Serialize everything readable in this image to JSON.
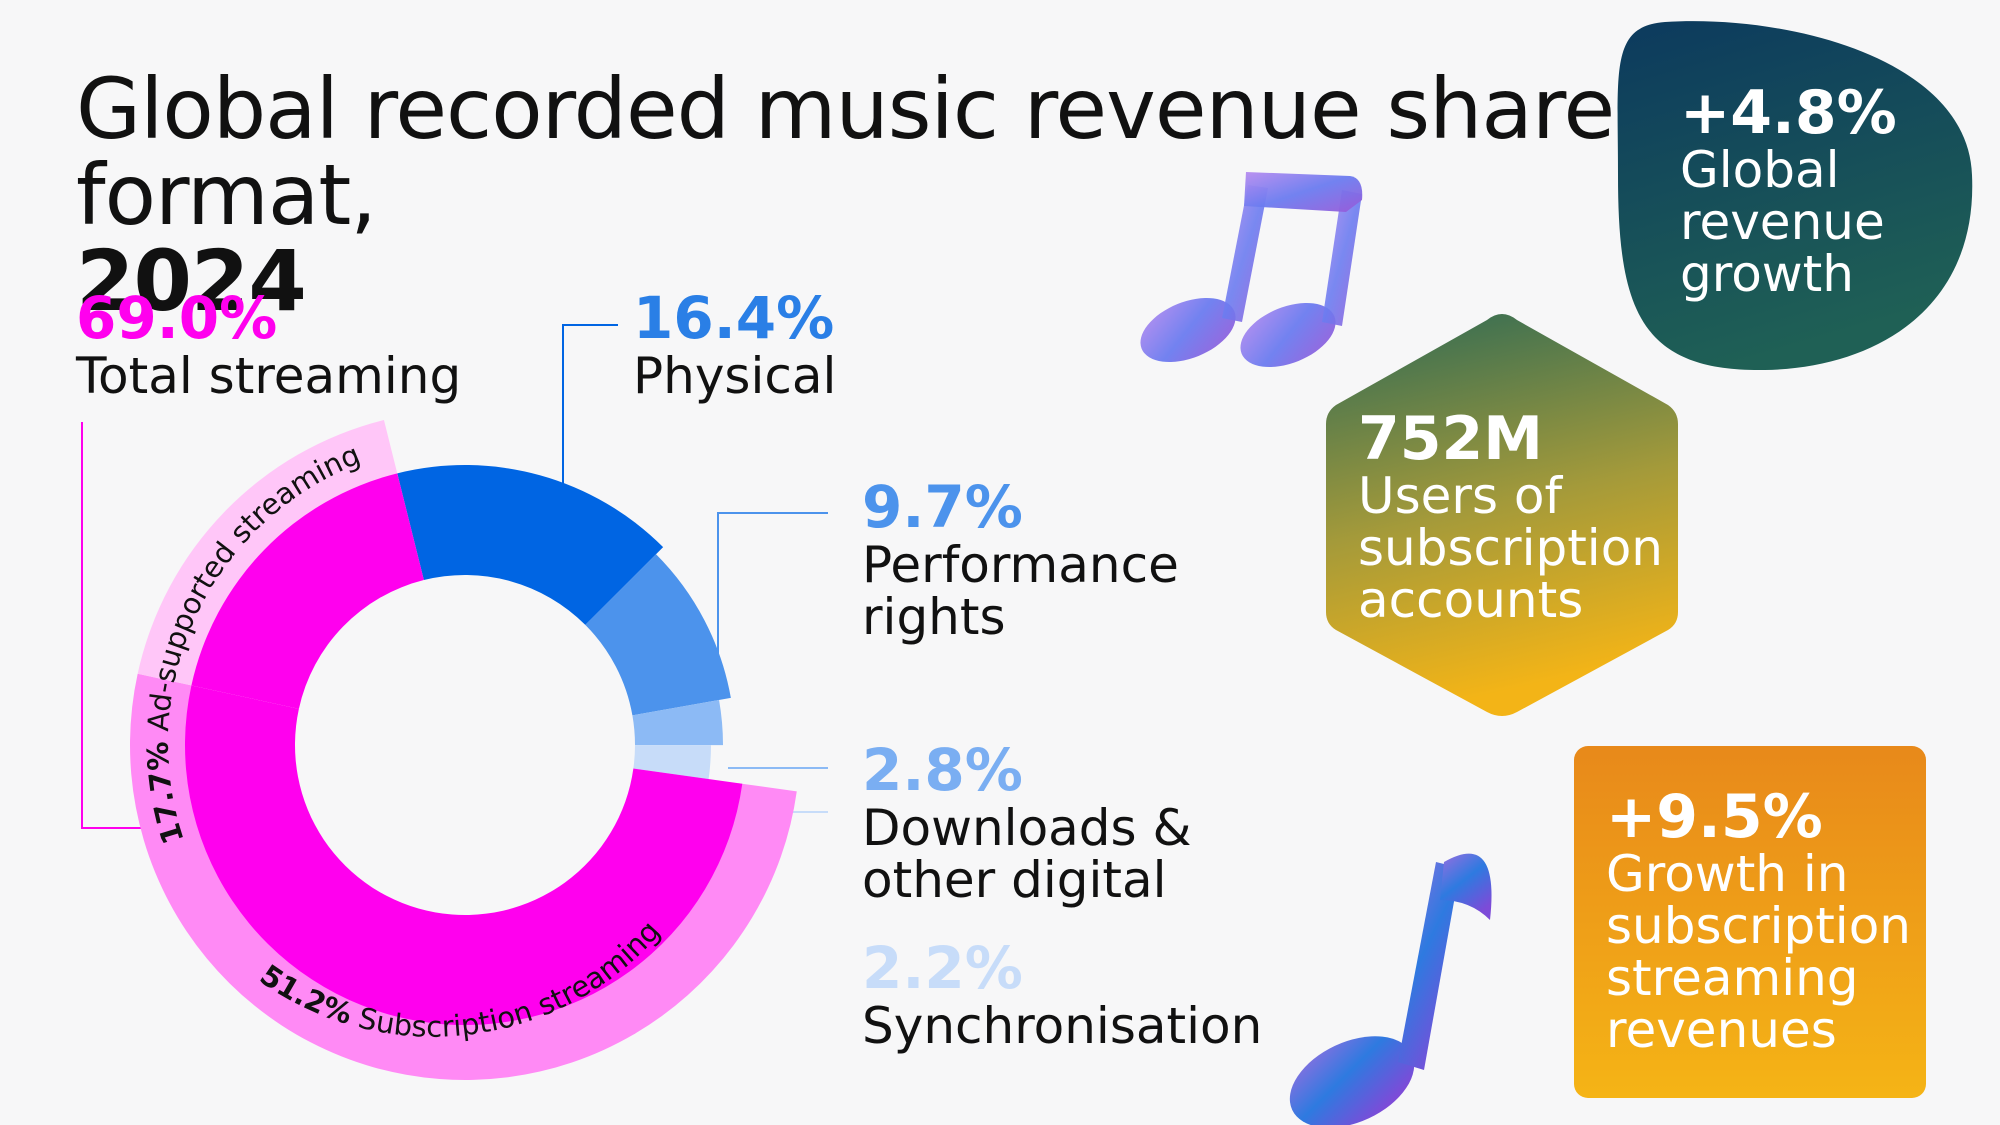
{
  "title": {
    "main": "Global recorded music revenue share by format,",
    "year": "2024"
  },
  "colors": {
    "streaming": "#ff00ee",
    "streaming_light": "#ff8af5",
    "streaming_pale": "#ffc6f8",
    "physical": "#0065e3",
    "performance": "#4c93ec",
    "downloads": "#8cbaf5",
    "sync": "#c7dcf9"
  },
  "labels": {
    "streaming": {
      "pct": "69.0%",
      "name": "Total streaming"
    },
    "physical": {
      "pct": "16.4%",
      "name": "Physical"
    },
    "performance": {
      "pct": "9.7%",
      "name1": "Performance",
      "name2": "rights"
    },
    "downloads": {
      "pct": "2.8%",
      "name1": "Downloads &",
      "name2": "other digital"
    },
    "sync": {
      "pct": "2.2%",
      "name": "Synchronisation"
    }
  },
  "arc_labels": {
    "ad_pct": "17.7%",
    "ad_name": "Ad-supported streaming",
    "sub_pct": "51.2%",
    "sub_name": "Subscription streaming"
  },
  "chart_data": {
    "type": "pie",
    "title": "Global recorded music revenue share by format, 2024",
    "unit": "%",
    "slices": [
      {
        "name": "Physical",
        "value": 16.4
      },
      {
        "name": "Performance rights",
        "value": 9.7
      },
      {
        "name": "Downloads & other digital",
        "value": 2.8
      },
      {
        "name": "Synchronisation",
        "value": 2.2
      },
      {
        "name": "Subscription streaming",
        "value": 51.2,
        "group": "Total streaming"
      },
      {
        "name": "Ad-supported streaming",
        "value": 17.7,
        "group": "Total streaming"
      }
    ],
    "groups": [
      {
        "name": "Total streaming",
        "value": 69.0
      }
    ]
  },
  "stats": {
    "growth": {
      "value": "+4.8%",
      "l1": "Global",
      "l2": "revenue",
      "l3": "growth"
    },
    "users": {
      "value": "752M",
      "l1": "Users of",
      "l2": "subscription",
      "l3": "accounts"
    },
    "subs": {
      "value": "+9.5%",
      "l1": "Growth in",
      "l2": "subscription",
      "l3": "streaming",
      "l4": "revenues"
    }
  },
  "icons": [
    "double-music-note-icon",
    "single-music-note-icon"
  ]
}
